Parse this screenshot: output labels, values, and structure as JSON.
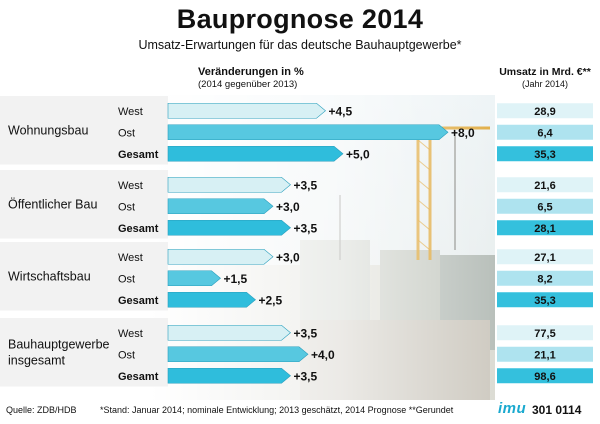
{
  "title": "Bauprognose 2014",
  "subtitle": "Umsatz-Erwartungen für das deutsche Bauhauptgewerbe*",
  "header_change": "Veränderungen in %",
  "header_change_sub": "(2014 gegenüber 2013)",
  "header_sales": "Umsatz in Mrd. €**",
  "header_sales_sub": "(Jahr 2014)",
  "footer": {
    "source": "Quelle: ZDB/HDB",
    "note": "*Stand: Januar 2014; nominale Entwicklung; 2013 geschätzt, 2014 Prognose   **Gerundet",
    "logo": "imu",
    "code": "301 0114"
  },
  "colors": {
    "west": "#d7f0f4",
    "ost": "#57c8e0",
    "gesamt": "#2fbddc",
    "sales_west": "#dff3f7",
    "sales_ost": "#aee3ef",
    "sales_gesamt": "#34c0dd",
    "band": "#f2f2f2"
  },
  "chart_data": {
    "type": "bar",
    "orientation": "horizontal",
    "unit": "%",
    "groups": [
      {
        "name": "Wohnungsbau",
        "rows": [
          {
            "region": "West",
            "change": 4.5,
            "change_label": "+4,5",
            "sales": "28,9"
          },
          {
            "region": "Ost",
            "change": 8.0,
            "change_label": "+8,0",
            "sales": "6,4"
          },
          {
            "region": "Gesamt",
            "change": 5.0,
            "change_label": "+5,0",
            "sales": "35,3"
          }
        ]
      },
      {
        "name": "Öffentlicher Bau",
        "rows": [
          {
            "region": "West",
            "change": 3.5,
            "change_label": "+3,5",
            "sales": "21,6"
          },
          {
            "region": "Ost",
            "change": 3.0,
            "change_label": "+3,0",
            "sales": "6,5"
          },
          {
            "region": "Gesamt",
            "change": 3.5,
            "change_label": "+3,5",
            "sales": "28,1"
          }
        ]
      },
      {
        "name": "Wirtschaftsbau",
        "rows": [
          {
            "region": "West",
            "change": 3.0,
            "change_label": "+3,0",
            "sales": "27,1"
          },
          {
            "region": "Ost",
            "change": 1.5,
            "change_label": "+1,5",
            "sales": "8,2"
          },
          {
            "region": "Gesamt",
            "change": 2.5,
            "change_label": "+2,5",
            "sales": "35,3"
          }
        ]
      },
      {
        "name": "Bauhauptgewerbe insgesamt",
        "rows": [
          {
            "region": "West",
            "change": 3.5,
            "change_label": "+3,5",
            "sales": "77,5"
          },
          {
            "region": "Ost",
            "change": 4.0,
            "change_label": "+4,0",
            "sales": "21,1"
          },
          {
            "region": "Gesamt",
            "change": 3.5,
            "change_label": "+3,5",
            "sales": "98,6"
          }
        ]
      }
    ]
  }
}
